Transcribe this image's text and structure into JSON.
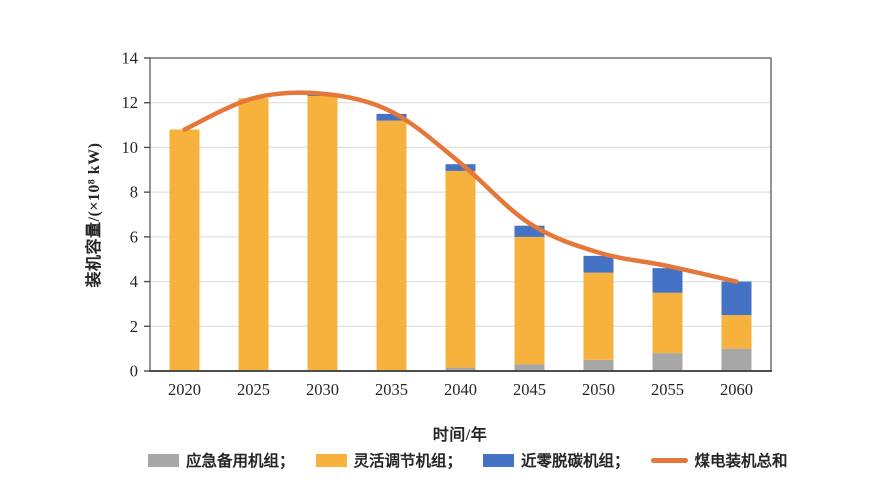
{
  "colors": {
    "bar_gray": "#A7A7A7",
    "bar_orange": "#F7B13D",
    "bar_blue": "#4472C4",
    "line_orange": "#E5773A",
    "grid": "#D9D9D9",
    "axis": "#4D4D4D",
    "text": "#262626"
  },
  "chart_data": {
    "type": "bar",
    "stacked": true,
    "grid": true,
    "title": "",
    "xlabel": "时间/年",
    "ylabel": "装机容量/(×10⁸ kW)",
    "ylim": [
      0,
      14
    ],
    "ytick_step": 2,
    "categories": [
      "2020",
      "2025",
      "2030",
      "2035",
      "2040",
      "2045",
      "2050",
      "2055",
      "2060"
    ],
    "series": [
      {
        "name": "应急备用机组",
        "color_key": "bar_gray",
        "values": [
          0,
          0,
          0,
          0,
          0.15,
          0.3,
          0.5,
          0.8,
          1.0
        ]
      },
      {
        "name": "灵活调节机组",
        "color_key": "bar_orange",
        "values": [
          10.8,
          12.2,
          12.3,
          11.2,
          8.8,
          5.7,
          3.9,
          2.7,
          1.5
        ]
      },
      {
        "name": "近零脱碳机组",
        "color_key": "bar_blue",
        "values": [
          0,
          0,
          0.1,
          0.3,
          0.3,
          0.5,
          0.75,
          1.1,
          1.5
        ]
      }
    ],
    "line_series": {
      "name": "煤电装机总和",
      "color_key": "line_orange",
      "values": [
        10.8,
        12.2,
        12.4,
        11.6,
        9.3,
        6.6,
        5.3,
        4.7,
        4.0
      ]
    },
    "legend_position": "bottom"
  },
  "legend": {
    "items": [
      {
        "key": "emergency-backup-units",
        "swatch": "rect",
        "color_key": "bar_gray",
        "label": "应急备用机组；"
      },
      {
        "key": "flexible-regulation-units",
        "swatch": "rect",
        "color_key": "bar_orange",
        "label": "灵活调节机组；"
      },
      {
        "key": "near-zero-decarbonization-units",
        "swatch": "rect",
        "color_key": "bar_blue",
        "label": "近零脱碳机组；"
      },
      {
        "key": "coal-power-total",
        "swatch": "line",
        "color_key": "line_orange",
        "label": "煤电装机总和"
      }
    ]
  }
}
